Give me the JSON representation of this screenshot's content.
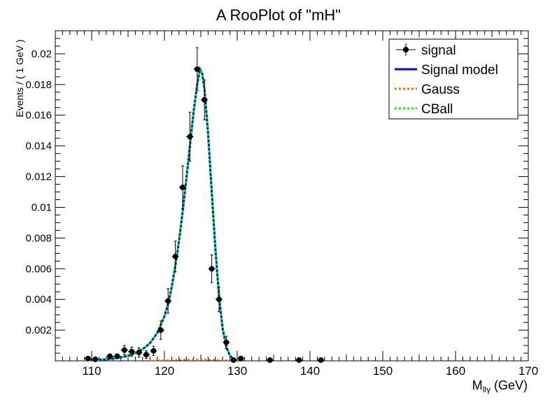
{
  "chart_data": {
    "type": "scatter",
    "title": "A RooPlot of \"mH\"",
    "xlabel_main": "M",
    "xlabel_sub": "llγ",
    "xlabel_unit": " (GeV)",
    "ylabel": "Events / ( 1 GeV )",
    "xlim": [
      105,
      170
    ],
    "ylim": [
      0,
      0.0215
    ],
    "xticks": [
      110,
      120,
      130,
      140,
      150,
      160,
      170
    ],
    "yticks": [
      0.002,
      0.004,
      0.006,
      0.008,
      0.01,
      0.012,
      0.014,
      0.016,
      0.018,
      0.02
    ],
    "ytick_labels": [
      "0.002",
      "0.004",
      "0.006",
      "0.008",
      "0.01",
      "0.012",
      "0.014",
      "0.016",
      "0.018",
      "0.02"
    ],
    "legend_position": "top-right",
    "legend": [
      {
        "label": "signal",
        "style": "marker",
        "color": "#000000"
      },
      {
        "label": "Signal model",
        "style": "solid",
        "color": "#0000ff"
      },
      {
        "label": "Gauss",
        "style": "dotted",
        "color": "#ff6600"
      },
      {
        "label": "CBall",
        "style": "dotted",
        "color": "#00ff00"
      }
    ],
    "points": [
      {
        "x": 109.5,
        "y": 0.00015,
        "err": 0.0001
      },
      {
        "x": 110.5,
        "y": 0.0001,
        "err": 0.0001
      },
      {
        "x": 112.5,
        "y": 0.0003,
        "err": 0.00015
      },
      {
        "x": 113.5,
        "y": 0.0003,
        "err": 0.00015
      },
      {
        "x": 114.5,
        "y": 0.0007,
        "err": 0.0003
      },
      {
        "x": 115.5,
        "y": 0.0006,
        "err": 0.0003
      },
      {
        "x": 116.5,
        "y": 0.00055,
        "err": 0.0003
      },
      {
        "x": 117.5,
        "y": 0.0004,
        "err": 0.00025
      },
      {
        "x": 118.5,
        "y": 0.00065,
        "err": 0.0003
      },
      {
        "x": 119.5,
        "y": 0.002,
        "err": 0.0006
      },
      {
        "x": 120.5,
        "y": 0.0039,
        "err": 0.0008
      },
      {
        "x": 121.5,
        "y": 0.0068,
        "err": 0.001
      },
      {
        "x": 122.5,
        "y": 0.0113,
        "err": 0.0014
      },
      {
        "x": 123.5,
        "y": 0.0146,
        "err": 0.0016
      },
      {
        "x": 124.5,
        "y": 0.019,
        "err": 0.0014
      },
      {
        "x": 125.5,
        "y": 0.017,
        "err": 0.0013
      },
      {
        "x": 126.5,
        "y": 0.006,
        "err": 0.0009
      },
      {
        "x": 127.5,
        "y": 0.004,
        "err": 0.0008
      },
      {
        "x": 128.5,
        "y": 0.0012,
        "err": 0.0004
      },
      {
        "x": 129.5,
        "y": 5e-05,
        "err": 0.0001
      },
      {
        "x": 130.5,
        "y": 0.00015,
        "err": 0.00015
      },
      {
        "x": 134.5,
        "y": 5e-05,
        "err": 0.0001
      },
      {
        "x": 138.5,
        "y": 5e-05,
        "err": 0.0001
      },
      {
        "x": 141.5,
        "y": 5e-05,
        "err": 0.0001
      }
    ],
    "model_curve": [
      [
        109,
        3e-05
      ],
      [
        110,
        5e-05
      ],
      [
        111,
        7e-05
      ],
      [
        112,
        0.0001
      ],
      [
        113,
        0.00015
      ],
      [
        114,
        0.00022
      ],
      [
        115,
        0.00033
      ],
      [
        116,
        0.0005
      ],
      [
        117,
        0.00075
      ],
      [
        118,
        0.00115
      ],
      [
        119,
        0.0018
      ],
      [
        120,
        0.0029
      ],
      [
        120.5,
        0.0037
      ],
      [
        121,
        0.0048
      ],
      [
        121.5,
        0.0062
      ],
      [
        122,
        0.0078
      ],
      [
        122.5,
        0.0097
      ],
      [
        123,
        0.0118
      ],
      [
        123.5,
        0.014
      ],
      [
        124,
        0.0162
      ],
      [
        124.5,
        0.018
      ],
      [
        124.9,
        0.019
      ],
      [
        125.2,
        0.0187
      ],
      [
        125.5,
        0.0177
      ],
      [
        126,
        0.0148
      ],
      [
        126.5,
        0.011
      ],
      [
        127,
        0.0073
      ],
      [
        127.5,
        0.0042
      ],
      [
        128,
        0.0021
      ],
      [
        128.5,
        0.0009
      ],
      [
        129,
        0.00035
      ],
      [
        129.5,
        0.0001
      ],
      [
        130,
        0.0
      ]
    ],
    "gauss_curve": [
      [
        118,
        2e-05
      ],
      [
        124.7,
        0.0001
      ],
      [
        130,
        2e-05
      ]
    ]
  }
}
